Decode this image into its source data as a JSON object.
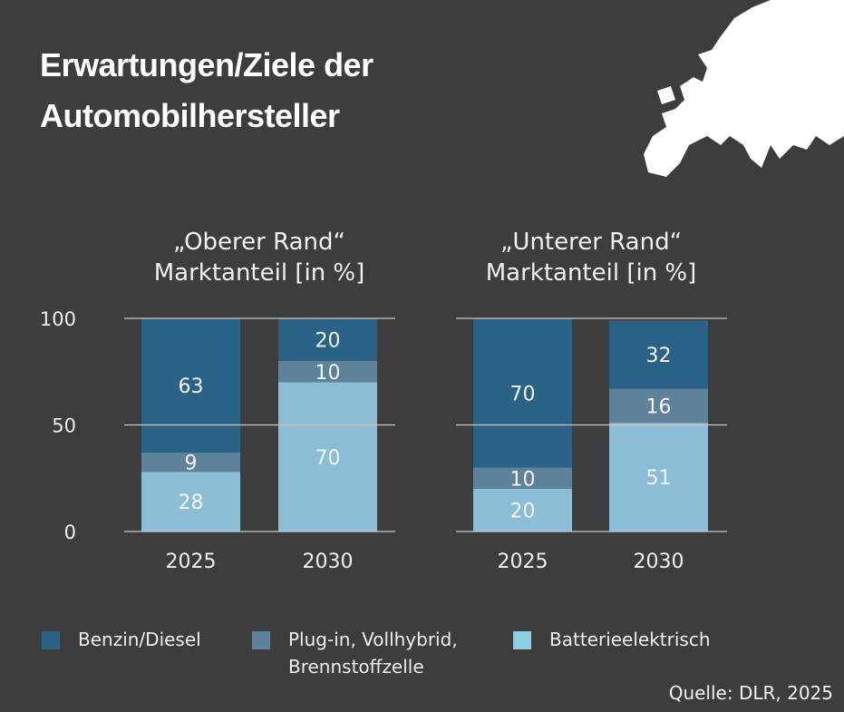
{
  "title_lines": [
    "Erwartungen/Ziele der",
    "Automobilhersteller"
  ],
  "source": "Quelle: DLR, 2025",
  "colors": {
    "background": "#3d3d3d",
    "benzin": "#2b6288",
    "plugin": "#5e8299",
    "bev": "#8bbdd6",
    "bev_legend": "#8dcfe0"
  },
  "chart_data": [
    {
      "type": "bar",
      "stacked": true,
      "title_lines": [
        "„Oberer Rand“",
        "Marktanteil [in %]"
      ],
      "categories": [
        "2025",
        "2030"
      ],
      "ylim": [
        0,
        100
      ],
      "yticks": [
        "0",
        "50",
        "100"
      ],
      "grid": true,
      "series": [
        {
          "name": "Batterieelektrisch",
          "values": [
            28,
            70
          ]
        },
        {
          "name": "Plug-in, Vollhybrid, Brennstoffzelle",
          "values": [
            9,
            10
          ]
        },
        {
          "name": "Benzin/Diesel",
          "values": [
            63,
            20
          ]
        }
      ]
    },
    {
      "type": "bar",
      "stacked": true,
      "title_lines": [
        "„Unterer Rand“",
        "Marktanteil [in %]"
      ],
      "categories": [
        "2025",
        "2030"
      ],
      "ylim": [
        0,
        100
      ],
      "grid": true,
      "series": [
        {
          "name": "Batterieelektrisch",
          "values": [
            20,
            51
          ]
        },
        {
          "name": "Plug-in, Vollhybrid, Brennstoffzelle",
          "values": [
            10,
            16
          ]
        },
        {
          "name": "Benzin/Diesel",
          "values": [
            70,
            32
          ]
        }
      ]
    }
  ],
  "legend": {
    "placement": "bottom",
    "items": [
      {
        "label": "Benzin/Diesel"
      },
      {
        "label_lines": [
          "Plug-in, Vollhybrid,",
          "Brennstoffzelle"
        ]
      },
      {
        "label": "Batterieelektrisch"
      }
    ]
  },
  "map_icon": "europe-map"
}
